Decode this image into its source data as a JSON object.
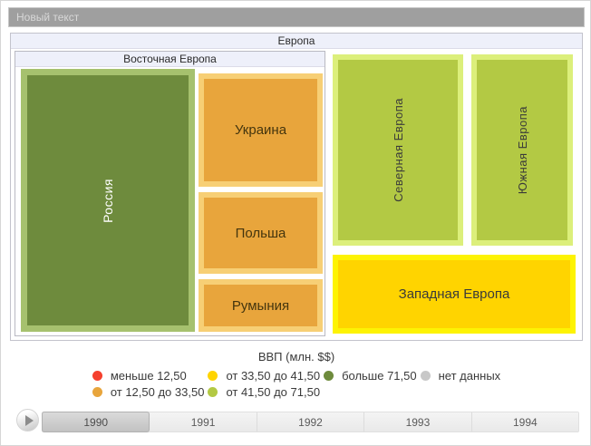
{
  "window": {
    "title": "Новый текст"
  },
  "chart_data": {
    "type": "treemap",
    "root": "Европа",
    "measure": "ВВП (млн. $$)",
    "current_year": "1990",
    "groups": [
      {
        "name": "Восточная Европа",
        "children": [
          {
            "name": "Россия",
            "value_bin": "больше 71,50",
            "color": "#6e8b3d"
          },
          {
            "name": "Украина",
            "value_bin": "от 12,50 до 33,50",
            "color": "#e8a53c"
          },
          {
            "name": "Польша",
            "value_bin": "от 12,50 до 33,50",
            "color": "#e8a53c"
          },
          {
            "name": "Румыния",
            "value_bin": "от 12,50 до 33,50",
            "color": "#e8a53c"
          }
        ]
      },
      {
        "name": "Северная Европа",
        "value_bin": "от 41,50 до 71,50",
        "color": "#b3c944"
      },
      {
        "name": "Южная Европа",
        "value_bin": "от 41,50 до 71,50",
        "color": "#b3c944"
      },
      {
        "name": "Западная Европа",
        "value_bin": "от 33,50 до 41,50",
        "color": "#ffd400"
      }
    ],
    "legend_position": "bottom",
    "timeline_years": [
      "1990",
      "1991",
      "1992",
      "1993",
      "1994"
    ]
  },
  "treemap": {
    "root_label": "Европа",
    "eastern_label": "Восточная Европа",
    "cells": {
      "russia": "Россия",
      "ukraine": "Украина",
      "poland": "Польша",
      "romania": "Румыния",
      "north": "Северная Европа",
      "south": "Южная Европа",
      "west": "Западная Европа"
    }
  },
  "legend": {
    "title": "ВВП (млн. $$)",
    "items": [
      {
        "label": "меньше 12,50",
        "color": "#f5402e"
      },
      {
        "label": "от 33,50 до 41,50",
        "color": "#ffd400"
      },
      {
        "label": "больше 71,50",
        "color": "#6e8b3d"
      },
      {
        "label": "нет данных",
        "color": "#c8c8c8"
      },
      {
        "label": "от 12,50 до 33,50",
        "color": "#e8a53c"
      },
      {
        "label": "от 41,50 до 71,50",
        "color": "#b3c944"
      }
    ]
  },
  "timeline": {
    "years": [
      "1990",
      "1991",
      "1992",
      "1993",
      "1994"
    ],
    "selected": "1990"
  },
  "colors": {
    "titlebar_bg": "#9f9f9f",
    "strip_bg": "#eef0fa",
    "russia_border": "#a6c16e",
    "orange_border": "#f7cf75",
    "green_border": "#dcef7b",
    "yellow_border": "#fdf304"
  }
}
